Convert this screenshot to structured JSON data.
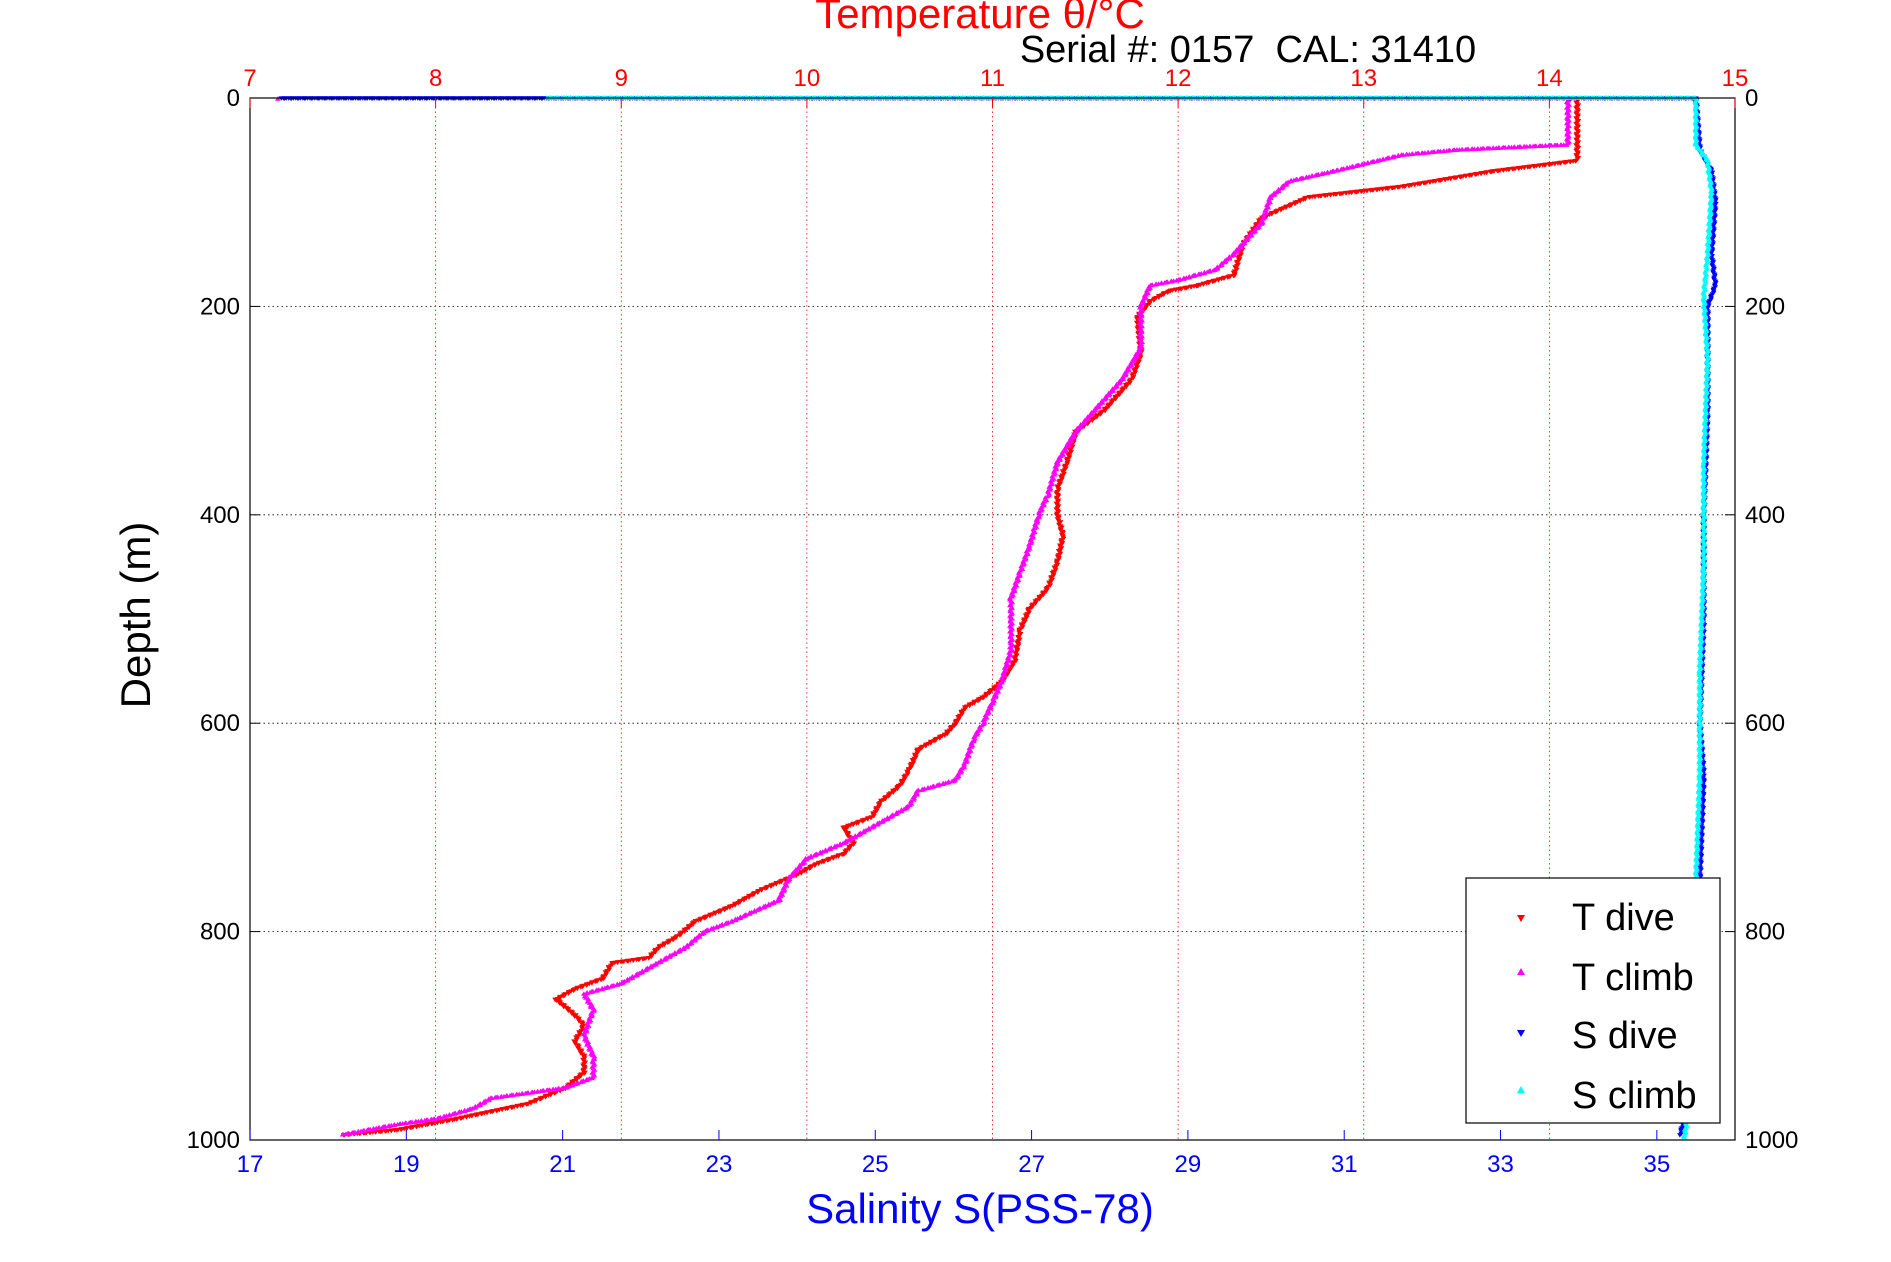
{
  "chart_data": {
    "type": "scatter",
    "title": "Temperature θ/°C",
    "subtitle": "Serial #: 0157  CAL: 31410",
    "ylabel": "Depth (m)",
    "xlabel": "Salinity S(PSS-78)",
    "x_top_label": "Temperature θ/°C",
    "ylim": [
      0,
      1000
    ],
    "y_reversed": true,
    "temperature_axis": {
      "range": [
        7,
        15
      ],
      "ticks": [
        7,
        8,
        9,
        10,
        11,
        12,
        13,
        14,
        15
      ],
      "color": "#ff0000"
    },
    "salinity_axis": {
      "range": [
        17,
        36
      ],
      "ticks": [
        17,
        19,
        21,
        23,
        25,
        27,
        29,
        31,
        33,
        35
      ],
      "color": "#0000ff"
    },
    "depth_ticks": [
      0,
      200,
      400,
      600,
      800,
      1000
    ],
    "grid": true,
    "legend_placement": "bottom-right",
    "series": [
      {
        "name": "T dive",
        "axis": "temperature",
        "color": "#ff0000",
        "marker": "triangle-down",
        "points": [
          [
            14.15,
            0
          ],
          [
            14.15,
            30
          ],
          [
            14.15,
            60
          ],
          [
            13.7,
            70
          ],
          [
            13.2,
            85
          ],
          [
            12.7,
            95
          ],
          [
            12.45,
            115
          ],
          [
            12.35,
            140
          ],
          [
            12.3,
            170
          ],
          [
            12.1,
            180
          ],
          [
            11.95,
            185
          ],
          [
            11.85,
            195
          ],
          [
            11.78,
            210
          ],
          [
            11.8,
            245
          ],
          [
            11.75,
            270
          ],
          [
            11.6,
            300
          ],
          [
            11.45,
            320
          ],
          [
            11.4,
            350
          ],
          [
            11.35,
            375
          ],
          [
            11.35,
            400
          ],
          [
            11.38,
            420
          ],
          [
            11.35,
            445
          ],
          [
            11.3,
            470
          ],
          [
            11.2,
            490
          ],
          [
            11.15,
            510
          ],
          [
            11.12,
            540
          ],
          [
            11.05,
            560
          ],
          [
            10.95,
            575
          ],
          [
            10.85,
            585
          ],
          [
            10.8,
            600
          ],
          [
            10.75,
            610
          ],
          [
            10.6,
            625
          ],
          [
            10.55,
            645
          ],
          [
            10.5,
            660
          ],
          [
            10.4,
            675
          ],
          [
            10.35,
            690
          ],
          [
            10.2,
            700
          ],
          [
            10.25,
            715
          ],
          [
            10.2,
            725
          ],
          [
            10.05,
            735
          ],
          [
            9.95,
            745
          ],
          [
            9.75,
            760
          ],
          [
            9.6,
            775
          ],
          [
            9.4,
            790
          ],
          [
            9.3,
            805
          ],
          [
            9.2,
            815
          ],
          [
            9.15,
            825
          ],
          [
            8.95,
            830
          ],
          [
            8.9,
            845
          ],
          [
            8.75,
            855
          ],
          [
            8.65,
            865
          ],
          [
            8.75,
            880
          ],
          [
            8.8,
            890
          ],
          [
            8.75,
            905
          ],
          [
            8.8,
            920
          ],
          [
            8.8,
            935
          ],
          [
            8.7,
            950
          ],
          [
            8.5,
            965
          ],
          [
            8.1,
            980
          ],
          [
            7.8,
            990
          ],
          [
            7.5,
            995
          ]
        ]
      },
      {
        "name": "T climb",
        "axis": "temperature",
        "color": "#ff00ff",
        "marker": "triangle-up",
        "points": [
          [
            14.1,
            0
          ],
          [
            14.1,
            30
          ],
          [
            14.1,
            45
          ],
          [
            13.5,
            50
          ],
          [
            13.2,
            55
          ],
          [
            12.85,
            70
          ],
          [
            12.6,
            80
          ],
          [
            12.5,
            95
          ],
          [
            12.45,
            120
          ],
          [
            12.3,
            150
          ],
          [
            12.2,
            165
          ],
          [
            12.0,
            175
          ],
          [
            11.85,
            180
          ],
          [
            11.8,
            200
          ],
          [
            11.8,
            240
          ],
          [
            11.7,
            270
          ],
          [
            11.55,
            300
          ],
          [
            11.45,
            320
          ],
          [
            11.35,
            350
          ],
          [
            11.3,
            380
          ],
          [
            11.25,
            400
          ],
          [
            11.2,
            430
          ],
          [
            11.15,
            455
          ],
          [
            11.1,
            480
          ],
          [
            11.1,
            500
          ],
          [
            11.1,
            530
          ],
          [
            11.05,
            560
          ],
          [
            11.0,
            580
          ],
          [
            10.95,
            600
          ],
          [
            10.9,
            615
          ],
          [
            10.85,
            640
          ],
          [
            10.8,
            655
          ],
          [
            10.6,
            665
          ],
          [
            10.55,
            680
          ],
          [
            10.4,
            695
          ],
          [
            10.2,
            715
          ],
          [
            10.0,
            730
          ],
          [
            9.9,
            750
          ],
          [
            9.85,
            770
          ],
          [
            9.6,
            790
          ],
          [
            9.45,
            800
          ],
          [
            9.35,
            815
          ],
          [
            9.2,
            830
          ],
          [
            9.1,
            840
          ],
          [
            9.0,
            850
          ],
          [
            8.8,
            860
          ],
          [
            8.85,
            875
          ],
          [
            8.8,
            900
          ],
          [
            8.85,
            920
          ],
          [
            8.85,
            940
          ],
          [
            8.7,
            950
          ],
          [
            8.3,
            960
          ],
          [
            8.2,
            970
          ],
          [
            8.0,
            980
          ],
          [
            7.8,
            985
          ],
          [
            7.5,
            995
          ],
          [
            7.15,
            1
          ]
        ]
      },
      {
        "name": "S dive",
        "axis": "salinity",
        "color": "#0000ff",
        "marker": "triangle-down",
        "points": [
          [
            17.4,
            0
          ],
          [
            35.5,
            0
          ],
          [
            35.55,
            50
          ],
          [
            35.7,
            70
          ],
          [
            35.75,
            100
          ],
          [
            35.7,
            150
          ],
          [
            35.75,
            180
          ],
          [
            35.65,
            200
          ],
          [
            35.65,
            300
          ],
          [
            35.6,
            400
          ],
          [
            35.6,
            500
          ],
          [
            35.55,
            600
          ],
          [
            35.6,
            650
          ],
          [
            35.55,
            750
          ],
          [
            35.5,
            850
          ],
          [
            35.45,
            950
          ],
          [
            35.3,
            995
          ]
        ]
      },
      {
        "name": "S climb",
        "axis": "salinity",
        "color": "#00ffff",
        "marker": "triangle-up",
        "points": [
          [
            20.8,
            0
          ],
          [
            35.5,
            0
          ],
          [
            35.5,
            45
          ],
          [
            35.65,
            60
          ],
          [
            35.7,
            90
          ],
          [
            35.65,
            150
          ],
          [
            35.6,
            190
          ],
          [
            35.65,
            250
          ],
          [
            35.6,
            350
          ],
          [
            35.6,
            450
          ],
          [
            35.55,
            550
          ],
          [
            35.55,
            650
          ],
          [
            35.5,
            750
          ],
          [
            35.5,
            850
          ],
          [
            35.45,
            950
          ],
          [
            35.35,
            998
          ]
        ]
      }
    ]
  }
}
